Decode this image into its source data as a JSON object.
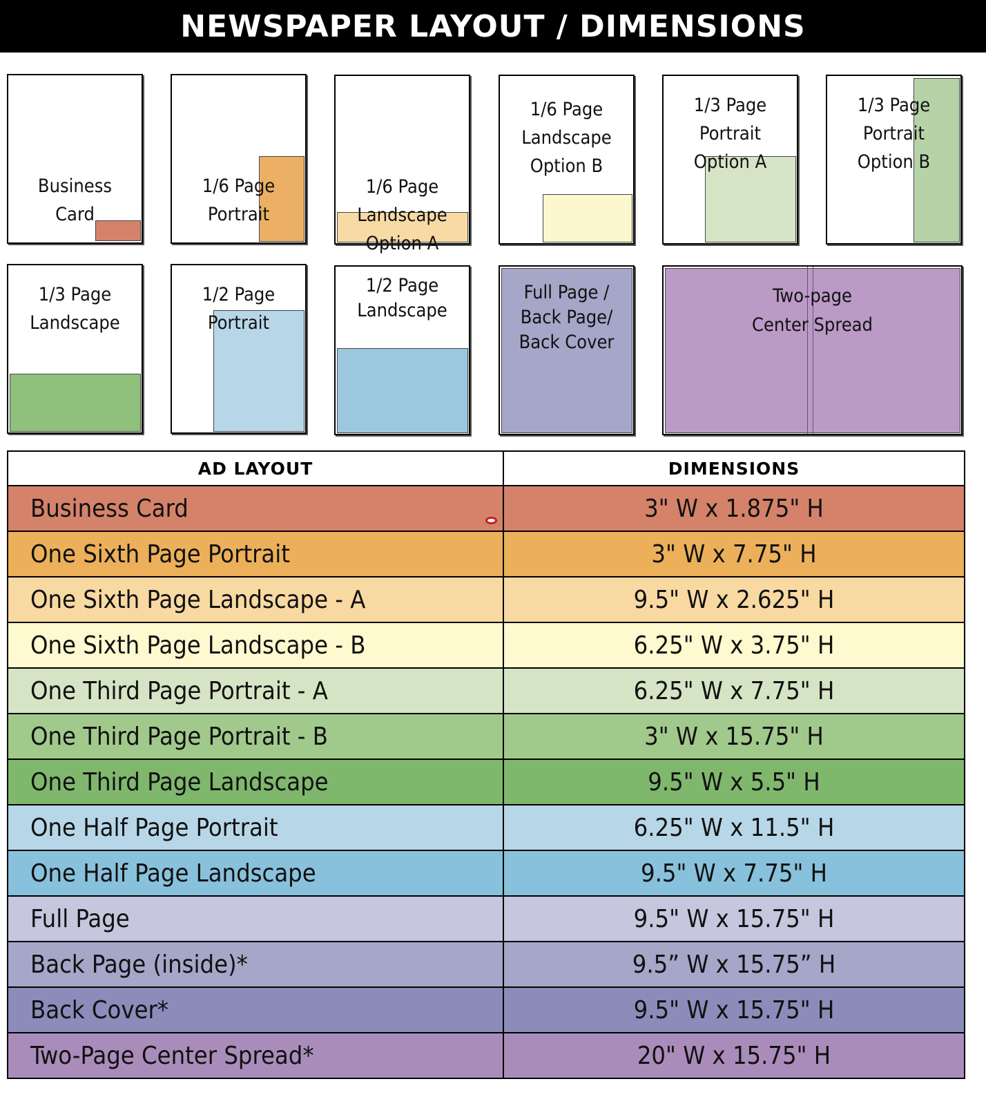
{
  "title": "NEWSPAPER LAYOUT / DIMENSIONS",
  "thumbnails": [
    {
      "label": "Business\nCard",
      "color": "#d4836a"
    },
    {
      "label": "1/6 Page\nPortrait",
      "color": "#ecb065"
    },
    {
      "label": "1/6 Page\nLandscape\nOption A",
      "color": "#f8dba4"
    },
    {
      "label": "1/6 Page\nLandscape\nOption B",
      "color": "#fdf7cf"
    },
    {
      "label": "1/3 Page\nPortrait\nOption A",
      "color": "#d5e4c5"
    },
    {
      "label": "1/3 Page\nPortrait\nOption B",
      "color": "#b6d3a8"
    },
    {
      "label": "1/3 Page\nLandscape",
      "color": "#8fc07c"
    },
    {
      "label": "1/2 Page\nPortrait",
      "color": "#b7d7e8"
    },
    {
      "label": "1/2 Page\nLandscape",
      "color": "#9bc8de"
    },
    {
      "label": "Full Page /\nBack Page/\nBack Cover",
      "color": "#a5a6c8"
    },
    {
      "label": "Two-page\nCenter Spread",
      "color": "#bb9ac6"
    }
  ],
  "table": {
    "headers": [
      "AD  LAYOUT",
      "DIMENSIONS"
    ],
    "rows": [
      {
        "layout": "Business Card",
        "dimensions": "3\" W x 1.875\" H",
        "color": "#d4836a"
      },
      {
        "layout": "One Sixth Page Portrait",
        "dimensions": "3\" W x 7.75\" H",
        "color": "#ecb05a"
      },
      {
        "layout": "One Sixth Page Landscape - A",
        "dimensions": "9.5\" W x 2.625\" H",
        "color": "#f8d9a2"
      },
      {
        "layout": "One Sixth Page Landscape - B",
        "dimensions": "6.25\" W x 3.75\" H",
        "color": "#fef9cf"
      },
      {
        "layout": "One Third Page Portrait - A",
        "dimensions": "6.25\" W x 7.75\" H",
        "color": "#d5e4c5"
      },
      {
        "layout": "One Third Page Portrait - B",
        "dimensions": "3\" W x 15.75\" H",
        "color": "#a1c98c"
      },
      {
        "layout": "One Third Page Landscape",
        "dimensions": "9.5\" W x 5.5\" H",
        "color": "#7fb86d"
      },
      {
        "layout": "One Half Page Portrait",
        "dimensions": "6.25\" W x 11.5\" H",
        "color": "#b7d7e8"
      },
      {
        "layout": "One Half Page Landscape",
        "dimensions": "9.5\" W x 7.75\" H",
        "color": "#88c1dc"
      },
      {
        "layout": "Full Page",
        "dimensions": "9.5\" W x 15.75\" H",
        "color": "#c6c6de"
      },
      {
        "layout": "Back Page (inside)*",
        "dimensions": "9.5” W x 15.75” H",
        "color": "#a5a6c8"
      },
      {
        "layout": "Back Cover*",
        "dimensions": "9.5\" W x 15.75\" H",
        "color": "#8b8cba"
      },
      {
        "layout": "Two-Page Center Spread*",
        "dimensions": "20\" W x 15.75\" H",
        "color": "#aa8cba"
      }
    ]
  }
}
